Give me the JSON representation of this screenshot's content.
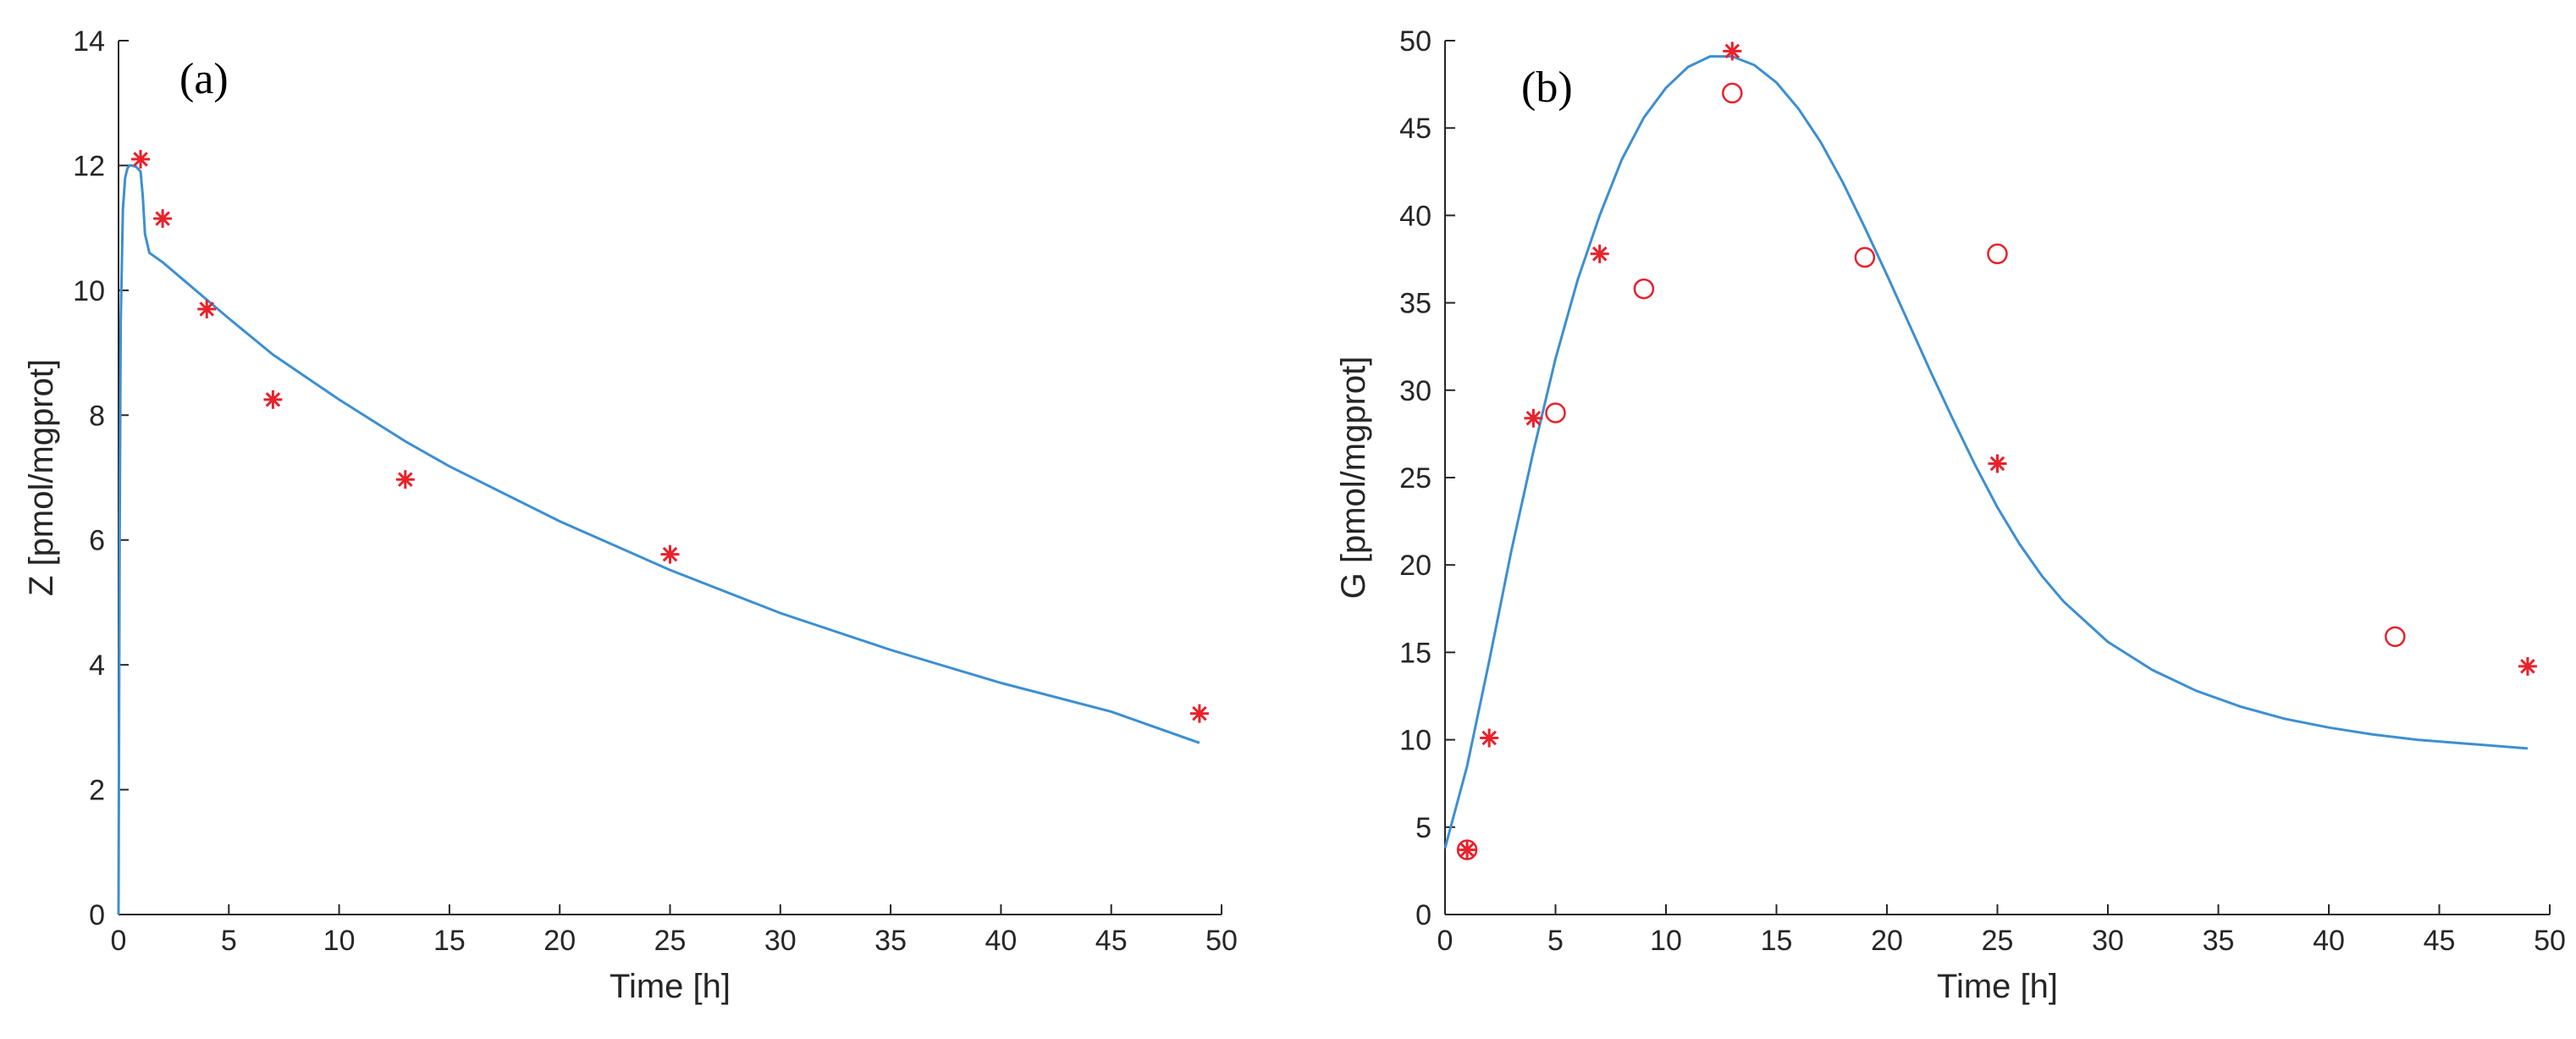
{
  "chart_data": [
    {
      "type": "scatter",
      "panel_label": "(a)",
      "xlabel": "Time [h]",
      "ylabel": "Z [pmol/mgprot]",
      "xlim": [
        0,
        50
      ],
      "ylim": [
        0,
        14
      ],
      "xticks": [
        0,
        5,
        10,
        15,
        20,
        25,
        30,
        35,
        40,
        45,
        50
      ],
      "yticks": [
        0,
        2,
        4,
        6,
        8,
        10,
        12,
        14
      ],
      "box": false,
      "grid": false,
      "series": [
        {
          "kind": "line",
          "color": "#3d8fd1",
          "x": [
            0,
            0.05,
            0.1,
            0.2,
            0.3,
            0.4,
            0.5,
            0.6,
            0.8,
            1.0,
            1.1,
            1.2,
            1.4,
            2,
            3,
            4,
            5,
            7,
            10,
            13,
            15,
            20,
            25,
            30,
            35,
            40,
            45,
            49
          ],
          "y": [
            0,
            6.0,
            9.5,
            11.3,
            11.8,
            11.95,
            12.0,
            12.0,
            11.98,
            11.9,
            11.5,
            10.9,
            10.6,
            10.45,
            10.15,
            9.85,
            9.55,
            8.97,
            8.25,
            7.58,
            7.18,
            6.3,
            5.52,
            4.83,
            4.24,
            3.71,
            3.25,
            2.75
          ]
        },
        {
          "kind": "marker",
          "marker": "asterisk",
          "color": "#e8212b",
          "x": [
            1,
            2,
            4,
            7,
            13,
            25,
            49
          ],
          "y": [
            12.1,
            11.15,
            9.7,
            8.25,
            6.97,
            5.77,
            3.22
          ]
        }
      ]
    },
    {
      "type": "scatter",
      "panel_label": "(b)",
      "xlabel": "Time [h]",
      "ylabel": "G [pmol/mgprot]",
      "xlim": [
        0,
        50
      ],
      "ylim": [
        0,
        50
      ],
      "xticks": [
        0,
        5,
        10,
        15,
        20,
        25,
        30,
        35,
        40,
        45,
        50
      ],
      "yticks": [
        0,
        5,
        10,
        15,
        20,
        25,
        30,
        35,
        40,
        45,
        50
      ],
      "box": false,
      "grid": false,
      "series": [
        {
          "kind": "line",
          "color": "#3d8fd1",
          "x": [
            0,
            1,
            2,
            3,
            4,
            5,
            6,
            7,
            8,
            9,
            10,
            11,
            12,
            13,
            14,
            15,
            16,
            17,
            18,
            19,
            20,
            21,
            22,
            23,
            24,
            25,
            26,
            27,
            28,
            30,
            32,
            34,
            36,
            38,
            40,
            42,
            44,
            46,
            49
          ],
          "y": [
            3.8,
            8.5,
            14.5,
            20.8,
            26.5,
            31.8,
            36.3,
            40.0,
            43.2,
            45.6,
            47.3,
            48.5,
            49.1,
            49.1,
            48.6,
            47.6,
            46.1,
            44.2,
            41.9,
            39.3,
            36.6,
            33.8,
            31.0,
            28.3,
            25.7,
            23.3,
            21.2,
            19.4,
            17.9,
            15.6,
            14.0,
            12.8,
            11.9,
            11.2,
            10.7,
            10.3,
            10.0,
            9.8,
            9.5
          ]
        },
        {
          "kind": "marker",
          "marker": "asterisk",
          "color": "#e8212b",
          "x": [
            1,
            2,
            4,
            7,
            13,
            25,
            49
          ],
          "y": [
            3.7,
            10.1,
            28.4,
            37.8,
            49.4,
            25.8,
            14.2
          ]
        },
        {
          "kind": "marker",
          "marker": "circle",
          "color": "#e8212b",
          "x": [
            1,
            5,
            9,
            13,
            19,
            25,
            43
          ],
          "y": [
            3.7,
            28.7,
            35.8,
            47.0,
            37.6,
            37.8,
            15.9
          ]
        }
      ]
    }
  ]
}
